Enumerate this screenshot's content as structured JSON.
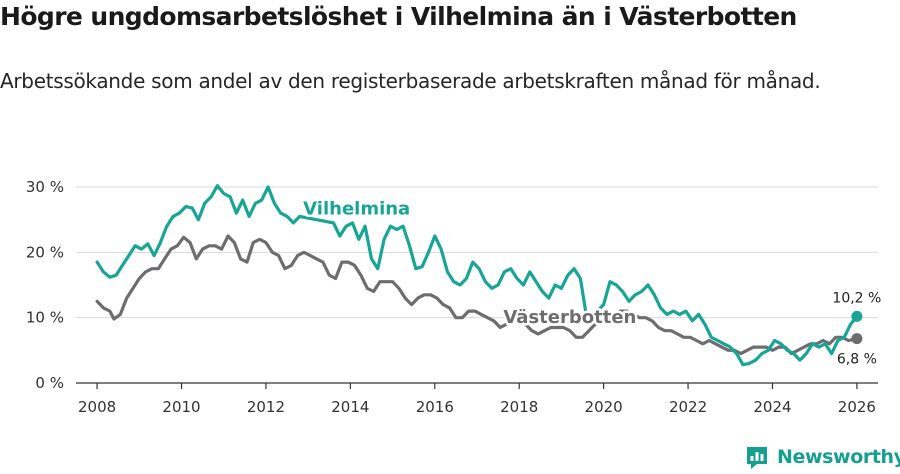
{
  "title": "Högre ungdomsarbetslöshet i Vilhelmina än i Västerbotten",
  "subtitle": "Arbetssökande som andel av den registerbaserade arbetskraften månad för månad.",
  "brand": {
    "name": "Newsworthy",
    "icon": "newsworthy-logo-icon",
    "color": "#159f8f"
  },
  "colors": {
    "vilhelmina": "#17a596",
    "vasterbotten": "#6d6d70",
    "grid": "#d9d9d9",
    "axis": "#333333"
  },
  "chart_data": {
    "type": "line",
    "title": "Högre ungdomsarbetslöshet i Vilhelmina än i Västerbotten",
    "xlabel": "",
    "ylabel": "",
    "xlim": [
      2007.5,
      2026.5
    ],
    "ylim": [
      0,
      30
    ],
    "yticks": [
      0,
      10,
      20,
      30
    ],
    "ytick_labels": [
      "0 %",
      "10 %",
      "20 %",
      "30 %"
    ],
    "xticks": [
      2008,
      2010,
      2012,
      2014,
      2016,
      2018,
      2020,
      2022,
      2024,
      2026
    ],
    "xtick_labels": [
      "2008",
      "2010",
      "2012",
      "2014",
      "2016",
      "2018",
      "2020",
      "2022",
      "2024",
      "2026"
    ],
    "grid": true,
    "series": [
      {
        "name": "Vilhelmina",
        "label": "Vilhelmina",
        "color": "#17a596",
        "end_label": "10,2 %",
        "points": [
          [
            2008.0,
            18.5
          ],
          [
            2008.15,
            17.0
          ],
          [
            2008.3,
            16.2
          ],
          [
            2008.45,
            16.5
          ],
          [
            2008.6,
            18.0
          ],
          [
            2008.75,
            19.5
          ],
          [
            2008.9,
            21.0
          ],
          [
            2009.05,
            20.5
          ],
          [
            2009.2,
            21.3
          ],
          [
            2009.35,
            19.5
          ],
          [
            2009.5,
            21.5
          ],
          [
            2009.65,
            24.0
          ],
          [
            2009.8,
            25.5
          ],
          [
            2009.95,
            26.0
          ],
          [
            2010.1,
            27.0
          ],
          [
            2010.25,
            26.8
          ],
          [
            2010.4,
            25.0
          ],
          [
            2010.55,
            27.5
          ],
          [
            2010.7,
            28.5
          ],
          [
            2010.85,
            30.2
          ],
          [
            2011.0,
            29.0
          ],
          [
            2011.15,
            28.5
          ],
          [
            2011.3,
            26.0
          ],
          [
            2011.45,
            28.0
          ],
          [
            2011.6,
            25.5
          ],
          [
            2011.75,
            27.5
          ],
          [
            2011.9,
            28.0
          ],
          [
            2012.05,
            30.0
          ],
          [
            2012.2,
            27.5
          ],
          [
            2012.35,
            26.0
          ],
          [
            2012.5,
            25.5
          ],
          [
            2012.65,
            24.5
          ],
          [
            2012.8,
            25.5
          ],
          [
            2013.6,
            24.5
          ],
          [
            2013.75,
            22.5
          ],
          [
            2013.9,
            24.0
          ],
          [
            2014.05,
            24.5
          ],
          [
            2014.2,
            22.0
          ],
          [
            2014.35,
            24.0
          ],
          [
            2014.5,
            19.0
          ],
          [
            2014.65,
            17.5
          ],
          [
            2014.8,
            22.0
          ],
          [
            2014.95,
            24.0
          ],
          [
            2015.1,
            23.5
          ],
          [
            2015.25,
            24.0
          ],
          [
            2015.4,
            21.0
          ],
          [
            2015.55,
            17.5
          ],
          [
            2015.7,
            17.8
          ],
          [
            2015.85,
            20.0
          ],
          [
            2016.0,
            22.5
          ],
          [
            2016.15,
            20.5
          ],
          [
            2016.3,
            17.0
          ],
          [
            2016.45,
            15.5
          ],
          [
            2016.6,
            15.0
          ],
          [
            2016.75,
            16.0
          ],
          [
            2016.9,
            18.5
          ],
          [
            2017.05,
            17.5
          ],
          [
            2017.2,
            15.5
          ],
          [
            2017.35,
            14.5
          ],
          [
            2017.5,
            15.0
          ],
          [
            2017.65,
            17.0
          ],
          [
            2017.8,
            17.5
          ],
          [
            2017.95,
            16.0
          ],
          [
            2018.1,
            15.0
          ],
          [
            2018.25,
            17.0
          ],
          [
            2018.4,
            15.5
          ],
          [
            2018.55,
            14.0
          ],
          [
            2018.7,
            13.0
          ],
          [
            2018.85,
            15.0
          ],
          [
            2019.0,
            14.5
          ],
          [
            2019.15,
            16.5
          ],
          [
            2019.3,
            17.5
          ],
          [
            2019.45,
            16.0
          ],
          [
            2019.6,
            10.0
          ],
          [
            2019.85,
            11.0
          ],
          [
            2020.0,
            12.0
          ],
          [
            2020.15,
            15.5
          ],
          [
            2020.3,
            15.0
          ],
          [
            2020.45,
            14.0
          ],
          [
            2020.6,
            12.5
          ],
          [
            2020.75,
            13.5
          ],
          [
            2020.9,
            14.0
          ],
          [
            2021.05,
            15.0
          ],
          [
            2021.2,
            13.5
          ],
          [
            2021.35,
            11.5
          ],
          [
            2021.5,
            10.5
          ],
          [
            2021.65,
            11.0
          ],
          [
            2021.8,
            10.5
          ],
          [
            2021.95,
            11.0
          ],
          [
            2022.1,
            9.5
          ],
          [
            2022.25,
            10.5
          ],
          [
            2022.4,
            9.0
          ],
          [
            2022.55,
            7.0
          ],
          [
            2022.7,
            6.5
          ],
          [
            2022.85,
            6.0
          ],
          [
            2023.0,
            5.5
          ],
          [
            2023.15,
            4.5
          ],
          [
            2023.3,
            2.8
          ],
          [
            2023.45,
            3.0
          ],
          [
            2023.6,
            3.5
          ],
          [
            2023.75,
            4.5
          ],
          [
            2023.9,
            5.0
          ],
          [
            2024.05,
            6.5
          ],
          [
            2024.2,
            6.0
          ],
          [
            2024.35,
            5.0
          ],
          [
            2024.5,
            4.5
          ],
          [
            2024.65,
            3.5
          ],
          [
            2024.8,
            4.5
          ],
          [
            2024.95,
            6.0
          ],
          [
            2025.1,
            5.5
          ],
          [
            2025.25,
            6.0
          ],
          [
            2025.4,
            4.5
          ],
          [
            2025.55,
            6.5
          ],
          [
            2025.7,
            7.0
          ],
          [
            2025.85,
            9.0
          ],
          [
            2026.0,
            10.2
          ]
        ]
      },
      {
        "name": "Västerbotten",
        "label": "Västerbotten",
        "color": "#6d6d70",
        "end_label": "6,8 %",
        "points": [
          [
            2008.0,
            12.5
          ],
          [
            2008.15,
            11.5
          ],
          [
            2008.3,
            11.0
          ],
          [
            2008.4,
            9.8
          ],
          [
            2008.55,
            10.5
          ],
          [
            2008.7,
            13.0
          ],
          [
            2008.85,
            14.5
          ],
          [
            2009.0,
            16.0
          ],
          [
            2009.15,
            17.0
          ],
          [
            2009.3,
            17.5
          ],
          [
            2009.45,
            17.5
          ],
          [
            2009.6,
            19.0
          ],
          [
            2009.75,
            20.5
          ],
          [
            2009.9,
            21.0
          ],
          [
            2010.05,
            22.3
          ],
          [
            2010.2,
            21.5
          ],
          [
            2010.35,
            19.0
          ],
          [
            2010.5,
            20.5
          ],
          [
            2010.65,
            21.0
          ],
          [
            2010.8,
            21.0
          ],
          [
            2010.95,
            20.5
          ],
          [
            2011.1,
            22.5
          ],
          [
            2011.25,
            21.5
          ],
          [
            2011.4,
            19.0
          ],
          [
            2011.55,
            18.5
          ],
          [
            2011.7,
            21.5
          ],
          [
            2011.85,
            22.0
          ],
          [
            2012.0,
            21.5
          ],
          [
            2012.15,
            20.0
          ],
          [
            2012.3,
            19.5
          ],
          [
            2012.45,
            17.5
          ],
          [
            2012.6,
            18.0
          ],
          [
            2012.75,
            19.5
          ],
          [
            2012.9,
            20.0
          ],
          [
            2013.05,
            19.5
          ],
          [
            2013.2,
            19.0
          ],
          [
            2013.35,
            18.5
          ],
          [
            2013.5,
            16.5
          ],
          [
            2013.65,
            16.0
          ],
          [
            2013.8,
            18.5
          ],
          [
            2013.95,
            18.5
          ],
          [
            2014.1,
            18.0
          ],
          [
            2014.25,
            16.5
          ],
          [
            2014.4,
            14.5
          ],
          [
            2014.55,
            14.0
          ],
          [
            2014.7,
            15.5
          ],
          [
            2014.85,
            15.5
          ],
          [
            2015.0,
            15.5
          ],
          [
            2015.15,
            14.5
          ],
          [
            2015.3,
            13.0
          ],
          [
            2015.45,
            12.0
          ],
          [
            2015.6,
            13.0
          ],
          [
            2015.75,
            13.5
          ],
          [
            2015.9,
            13.5
          ],
          [
            2016.05,
            13.0
          ],
          [
            2016.2,
            12.0
          ],
          [
            2016.35,
            11.5
          ],
          [
            2016.5,
            10.0
          ],
          [
            2016.65,
            10.0
          ],
          [
            2016.8,
            11.0
          ],
          [
            2016.95,
            11.0
          ],
          [
            2017.1,
            10.5
          ],
          [
            2017.25,
            10.0
          ],
          [
            2017.4,
            9.5
          ],
          [
            2017.55,
            8.5
          ],
          [
            2017.7,
            9.0
          ],
          [
            2017.85,
            9.5
          ],
          [
            2018.0,
            9.5
          ],
          [
            2018.15,
            9.0
          ],
          [
            2018.3,
            8.0
          ],
          [
            2018.45,
            7.5
          ],
          [
            2018.6,
            8.0
          ],
          [
            2018.75,
            8.5
          ],
          [
            2018.9,
            8.5
          ],
          [
            2019.05,
            8.5
          ],
          [
            2019.2,
            8.0
          ],
          [
            2019.35,
            7.0
          ],
          [
            2019.5,
            7.0
          ],
          [
            2019.65,
            8.0
          ],
          [
            2019.8,
            9.0
          ],
          [
            2019.95,
            9.5
          ],
          [
            2020.1,
            10.5
          ],
          [
            2020.25,
            10.5
          ],
          [
            2020.4,
            11.0
          ],
          [
            2020.55,
            11.0
          ],
          [
            2020.7,
            10.5
          ],
          [
            2020.85,
            10.0
          ],
          [
            2021.0,
            10.0
          ],
          [
            2021.15,
            9.5
          ],
          [
            2021.3,
            8.5
          ],
          [
            2021.45,
            8.0
          ],
          [
            2021.6,
            8.0
          ],
          [
            2021.75,
            7.5
          ],
          [
            2021.9,
            7.0
          ],
          [
            2022.05,
            7.0
          ],
          [
            2022.2,
            6.5
          ],
          [
            2022.35,
            6.0
          ],
          [
            2022.5,
            6.5
          ],
          [
            2022.65,
            6.0
          ],
          [
            2022.8,
            5.5
          ],
          [
            2022.95,
            5.0
          ],
          [
            2023.1,
            5.0
          ],
          [
            2023.25,
            4.5
          ],
          [
            2023.4,
            5.0
          ],
          [
            2023.55,
            5.5
          ],
          [
            2023.7,
            5.5
          ],
          [
            2023.85,
            5.5
          ],
          [
            2024.0,
            5.0
          ],
          [
            2024.15,
            5.5
          ],
          [
            2024.3,
            5.5
          ],
          [
            2024.45,
            4.5
          ],
          [
            2024.6,
            5.0
          ],
          [
            2024.75,
            5.5
          ],
          [
            2024.9,
            6.0
          ],
          [
            2025.05,
            6.0
          ],
          [
            2025.2,
            6.5
          ],
          [
            2025.35,
            6.0
          ],
          [
            2025.5,
            7.0
          ],
          [
            2025.65,
            7.0
          ],
          [
            2025.8,
            6.5
          ],
          [
            2026.0,
            6.8
          ]
        ]
      }
    ],
    "annotations": [
      {
        "text": "Vilhelmina",
        "series": "Vilhelmina",
        "x": 2014.15,
        "y": 25.8
      },
      {
        "text": "Västerbotten",
        "series": "Västerbotten",
        "x": 2019.2,
        "y": 9.2
      }
    ]
  }
}
